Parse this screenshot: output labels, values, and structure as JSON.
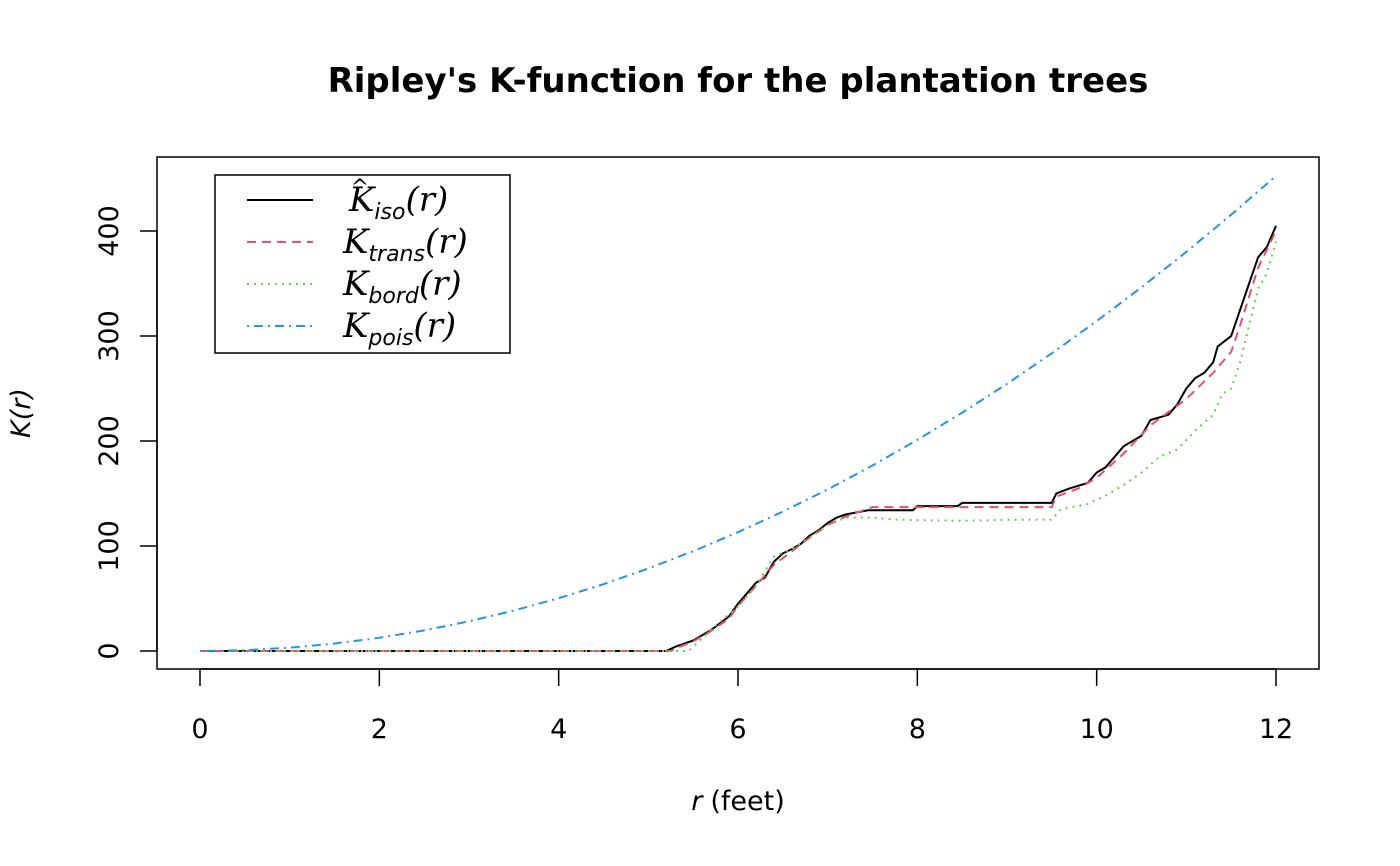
{
  "chart_data": {
    "type": "line",
    "title": "Ripley's K-function for the plantation trees",
    "xlabel_var": "r",
    "xlabel_unit": "(feet)",
    "ylabel": "K(r)",
    "xlim": [
      0,
      12
    ],
    "ylim": [
      0,
      455
    ],
    "xticks": [
      0,
      2,
      4,
      6,
      8,
      10,
      12
    ],
    "yticks": [
      0,
      100,
      200,
      300,
      400
    ],
    "grid": false,
    "legend_position": "top-left",
    "series": [
      {
        "name": "iso",
        "legend": {
          "main": "K",
          "hat": "^",
          "sub": "iso",
          "arg": "(r)"
        },
        "color": "#000000",
        "dash": "",
        "x": [
          0,
          5.2,
          5.3,
          5.5,
          5.7,
          5.9,
          6.0,
          6.1,
          6.2,
          6.3,
          6.4,
          6.5,
          6.6,
          6.7,
          6.8,
          6.9,
          7.0,
          7.1,
          7.2,
          7.45,
          7.95,
          8.0,
          8.45,
          8.5,
          9.5,
          9.55,
          9.7,
          9.9,
          10.0,
          10.1,
          10.2,
          10.3,
          10.5,
          10.6,
          10.8,
          10.9,
          11.0,
          11.1,
          11.2,
          11.3,
          11.35,
          11.5,
          11.6,
          11.7,
          11.8,
          11.9,
          12.0
        ],
        "y": [
          0,
          0,
          4,
          10,
          20,
          33,
          45,
          55,
          65,
          70,
          85,
          93,
          97,
          102,
          110,
          115,
          122,
          127,
          130,
          134,
          134,
          138,
          138,
          141,
          141,
          150,
          155,
          160,
          170,
          175,
          185,
          195,
          205,
          220,
          225,
          235,
          250,
          260,
          265,
          275,
          290,
          300,
          325,
          350,
          375,
          385,
          405
        ]
      },
      {
        "name": "trans",
        "legend": {
          "main": "K",
          "hat": "",
          "sub": "trans",
          "arg": "(r)"
        },
        "color": "#DF536B",
        "dash": "9,6",
        "x": [
          0,
          5.25,
          5.35,
          5.5,
          5.7,
          5.9,
          6.0,
          6.2,
          6.4,
          6.6,
          6.8,
          7.0,
          7.2,
          7.5,
          9.5,
          9.55,
          9.8,
          10.0,
          10.3,
          10.6,
          11.0,
          11.3,
          11.5,
          11.6,
          11.8,
          12.0
        ],
        "y": [
          0,
          0,
          4,
          9,
          19,
          31,
          43,
          62,
          82,
          95,
          108,
          120,
          128,
          137,
          137,
          147,
          155,
          165,
          188,
          215,
          240,
          265,
          285,
          310,
          365,
          400
        ]
      },
      {
        "name": "bord",
        "legend": {
          "main": "K",
          "hat": "",
          "sub": "bord",
          "arg": "(r)"
        },
        "color": "#61D04F",
        "dash": "2,5",
        "x": [
          0,
          5.45,
          5.6,
          5.8,
          6.0,
          6.2,
          6.4,
          6.6,
          6.8,
          7.0,
          7.2,
          7.5,
          7.8,
          8.5,
          9.0,
          9.5,
          9.6,
          9.9,
          10.1,
          10.3,
          10.5,
          10.7,
          10.9,
          11.1,
          11.3,
          11.4,
          11.5,
          11.6,
          11.7,
          11.8,
          11.9,
          12.0
        ],
        "y": [
          0,
          0,
          12,
          28,
          42,
          62,
          90,
          97,
          108,
          120,
          127,
          127,
          125,
          124,
          125,
          125,
          135,
          140,
          148,
          158,
          170,
          185,
          192,
          210,
          225,
          245,
          250,
          275,
          310,
          345,
          360,
          390
        ]
      },
      {
        "name": "pois",
        "legend": {
          "main": "K",
          "hat": "",
          "sub": "pois",
          "arg": "(r)"
        },
        "color": "#2297E6",
        "dash": "2,5,9,5",
        "x": [
          0,
          0.5,
          1,
          1.5,
          2,
          2.5,
          3,
          3.5,
          4,
          4.5,
          5,
          5.5,
          6,
          6.5,
          7,
          7.5,
          8,
          8.5,
          9,
          9.5,
          10,
          10.5,
          11,
          11.5,
          12
        ],
        "y": [
          0,
          0.79,
          3.14,
          7.07,
          12.57,
          19.63,
          28.27,
          38.48,
          50.27,
          63.62,
          78.54,
          95.03,
          113.1,
          132.73,
          153.94,
          176.71,
          201.06,
          226.98,
          254.47,
          283.53,
          314.16,
          346.36,
          380.13,
          415.48,
          452.39
        ]
      }
    ]
  }
}
